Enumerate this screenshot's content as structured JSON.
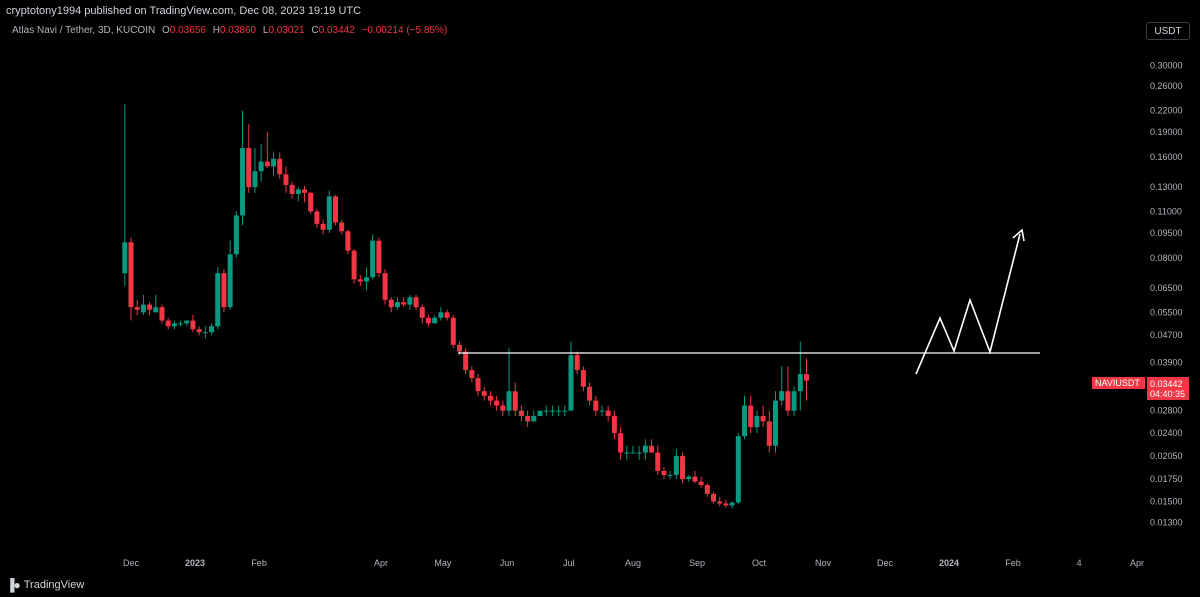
{
  "header": {
    "publish_line": "cryptotony1994 published on TradingView.com, Dec 08, 2023 19:19 UTC",
    "symbol": "Atlas Navi / Tether, 3D, KUCOIN",
    "ohlc": {
      "o_label": "O",
      "o": "0.03656",
      "h_label": "H",
      "h": "0.03860",
      "l_label": "L",
      "l": "0.03021",
      "c_label": "C",
      "c": "0.03442",
      "change": "−0.00214 (−5.85%)"
    },
    "currency_button": "USDT"
  },
  "price_tag": {
    "ticker": "NAVIUSDT",
    "price": "0.03442",
    "countdown": "04:40:35"
  },
  "footer": {
    "brand": "TradingView",
    "logo_icon": "tradingview-logo-icon"
  },
  "colors": {
    "up": "#089981",
    "down": "#f23645",
    "background": "#000000",
    "axis_text": "#b2b5be",
    "line": "#ffffff"
  },
  "chart_data": {
    "type": "candlestick",
    "y_scale": "log",
    "ylim": [
      0.012,
      0.32
    ],
    "y_ticks": [
      "0.30000",
      "0.26000",
      "0.22000",
      "0.19000",
      "0.16000",
      "0.13000",
      "0.11000",
      "0.09500",
      "0.08000",
      "0.06500",
      "0.05500",
      "0.04700",
      "0.03900",
      "0.02800",
      "0.02400",
      "0.02050",
      "0.01750",
      "0.01500",
      "0.01300"
    ],
    "x_ticks": [
      "Dec",
      "2023",
      "Feb",
      "Apr",
      "May",
      "Jun",
      "Jul",
      "Aug",
      "Sep",
      "Oct",
      "Nov",
      "Dec",
      "2024",
      "Feb",
      "4",
      "Apr"
    ],
    "x_tick_dates": [
      "2022-12-01",
      "2023-01-01",
      "2023-02-01",
      "2023-04-01",
      "2023-05-01",
      "2023-06-01",
      "2023-07-01",
      "2023-08-01",
      "2023-09-01",
      "2023-10-01",
      "2023-11-01",
      "2023-12-01",
      "2024-01-01",
      "2024-02-01",
      "2024-03-04",
      "2024-04-01"
    ],
    "grid": false,
    "candles": [
      {
        "date": "2022-11-28",
        "o": 0.072,
        "h": 0.23,
        "l": 0.066,
        "c": 0.089
      },
      {
        "date": "2022-12-01",
        "o": 0.089,
        "h": 0.092,
        "l": 0.052,
        "c": 0.057
      },
      {
        "date": "2022-12-04",
        "o": 0.057,
        "h": 0.06,
        "l": 0.054,
        "c": 0.056
      },
      {
        "date": "2022-12-07",
        "o": 0.055,
        "h": 0.062,
        "l": 0.054,
        "c": 0.058
      },
      {
        "date": "2022-12-10",
        "o": 0.058,
        "h": 0.059,
        "l": 0.054,
        "c": 0.056
      },
      {
        "date": "2022-12-13",
        "o": 0.055,
        "h": 0.062,
        "l": 0.055,
        "c": 0.057
      },
      {
        "date": "2022-12-16",
        "o": 0.057,
        "h": 0.058,
        "l": 0.051,
        "c": 0.052
      },
      {
        "date": "2022-12-19",
        "o": 0.052,
        "h": 0.053,
        "l": 0.049,
        "c": 0.05
      },
      {
        "date": "2022-12-22",
        "o": 0.05,
        "h": 0.052,
        "l": 0.049,
        "c": 0.051
      },
      {
        "date": "2022-12-25",
        "o": 0.051,
        "h": 0.052,
        "l": 0.05,
        "c": 0.051
      },
      {
        "date": "2022-12-28",
        "o": 0.051,
        "h": 0.052,
        "l": 0.05,
        "c": 0.052
      },
      {
        "date": "2022-12-31",
        "o": 0.052,
        "h": 0.054,
        "l": 0.048,
        "c": 0.049
      },
      {
        "date": "2023-01-03",
        "o": 0.049,
        "h": 0.05,
        "l": 0.047,
        "c": 0.048
      },
      {
        "date": "2023-01-06",
        "o": 0.048,
        "h": 0.05,
        "l": 0.046,
        "c": 0.048
      },
      {
        "date": "2023-01-09",
        "o": 0.048,
        "h": 0.051,
        "l": 0.047,
        "c": 0.05
      },
      {
        "date": "2023-01-12",
        "o": 0.05,
        "h": 0.075,
        "l": 0.049,
        "c": 0.072
      },
      {
        "date": "2023-01-15",
        "o": 0.072,
        "h": 0.074,
        "l": 0.055,
        "c": 0.057
      },
      {
        "date": "2023-01-18",
        "o": 0.057,
        "h": 0.09,
        "l": 0.056,
        "c": 0.082
      },
      {
        "date": "2023-01-21",
        "o": 0.082,
        "h": 0.11,
        "l": 0.08,
        "c": 0.107
      },
      {
        "date": "2023-01-24",
        "o": 0.107,
        "h": 0.22,
        "l": 0.1,
        "c": 0.17
      },
      {
        "date": "2023-01-27",
        "o": 0.17,
        "h": 0.2,
        "l": 0.125,
        "c": 0.13
      },
      {
        "date": "2023-01-30",
        "o": 0.13,
        "h": 0.17,
        "l": 0.125,
        "c": 0.145
      },
      {
        "date": "2023-02-02",
        "o": 0.145,
        "h": 0.175,
        "l": 0.135,
        "c": 0.155
      },
      {
        "date": "2023-02-05",
        "o": 0.155,
        "h": 0.19,
        "l": 0.148,
        "c": 0.15
      },
      {
        "date": "2023-02-08",
        "o": 0.15,
        "h": 0.166,
        "l": 0.14,
        "c": 0.158
      },
      {
        "date": "2023-02-11",
        "o": 0.158,
        "h": 0.165,
        "l": 0.138,
        "c": 0.142
      },
      {
        "date": "2023-02-14",
        "o": 0.142,
        "h": 0.15,
        "l": 0.125,
        "c": 0.132
      },
      {
        "date": "2023-02-17",
        "o": 0.132,
        "h": 0.135,
        "l": 0.12,
        "c": 0.124
      },
      {
        "date": "2023-02-20",
        "o": 0.124,
        "h": 0.13,
        "l": 0.118,
        "c": 0.128
      },
      {
        "date": "2023-02-23",
        "o": 0.128,
        "h": 0.131,
        "l": 0.117,
        "c": 0.125
      },
      {
        "date": "2023-02-26",
        "o": 0.125,
        "h": 0.126,
        "l": 0.108,
        "c": 0.11
      },
      {
        "date": "2023-03-01",
        "o": 0.11,
        "h": 0.112,
        "l": 0.098,
        "c": 0.101
      },
      {
        "date": "2023-03-04",
        "o": 0.101,
        "h": 0.104,
        "l": 0.094,
        "c": 0.097
      },
      {
        "date": "2023-03-07",
        "o": 0.097,
        "h": 0.127,
        "l": 0.095,
        "c": 0.122
      },
      {
        "date": "2023-03-10",
        "o": 0.122,
        "h": 0.123,
        "l": 0.1,
        "c": 0.102
      },
      {
        "date": "2023-03-13",
        "o": 0.102,
        "h": 0.104,
        "l": 0.094,
        "c": 0.096
      },
      {
        "date": "2023-03-16",
        "o": 0.096,
        "h": 0.097,
        "l": 0.082,
        "c": 0.084
      },
      {
        "date": "2023-03-19",
        "o": 0.084,
        "h": 0.085,
        "l": 0.067,
        "c": 0.069
      },
      {
        "date": "2023-03-22",
        "o": 0.069,
        "h": 0.071,
        "l": 0.066,
        "c": 0.068
      },
      {
        "date": "2023-03-25",
        "o": 0.068,
        "h": 0.075,
        "l": 0.064,
        "c": 0.07
      },
      {
        "date": "2023-03-28",
        "o": 0.07,
        "h": 0.094,
        "l": 0.069,
        "c": 0.09
      },
      {
        "date": "2023-03-31",
        "o": 0.09,
        "h": 0.092,
        "l": 0.07,
        "c": 0.072
      },
      {
        "date": "2023-04-03",
        "o": 0.072,
        "h": 0.074,
        "l": 0.058,
        "c": 0.06
      },
      {
        "date": "2023-04-06",
        "o": 0.06,
        "h": 0.061,
        "l": 0.055,
        "c": 0.057
      },
      {
        "date": "2023-04-09",
        "o": 0.057,
        "h": 0.061,
        "l": 0.056,
        "c": 0.059
      },
      {
        "date": "2023-04-12",
        "o": 0.059,
        "h": 0.061,
        "l": 0.057,
        "c": 0.058
      },
      {
        "date": "2023-04-15",
        "o": 0.058,
        "h": 0.062,
        "l": 0.056,
        "c": 0.061
      },
      {
        "date": "2023-04-18",
        "o": 0.061,
        "h": 0.062,
        "l": 0.056,
        "c": 0.057
      },
      {
        "date": "2023-04-21",
        "o": 0.057,
        "h": 0.058,
        "l": 0.051,
        "c": 0.053
      },
      {
        "date": "2023-04-24",
        "o": 0.053,
        "h": 0.054,
        "l": 0.05,
        "c": 0.051
      },
      {
        "date": "2023-04-27",
        "o": 0.051,
        "h": 0.054,
        "l": 0.051,
        "c": 0.053
      },
      {
        "date": "2023-04-30",
        "o": 0.053,
        "h": 0.057,
        "l": 0.052,
        "c": 0.055
      },
      {
        "date": "2023-05-03",
        "o": 0.055,
        "h": 0.056,
        "l": 0.052,
        "c": 0.053
      },
      {
        "date": "2023-05-06",
        "o": 0.053,
        "h": 0.054,
        "l": 0.043,
        "c": 0.044
      },
      {
        "date": "2023-05-09",
        "o": 0.044,
        "h": 0.045,
        "l": 0.041,
        "c": 0.042
      },
      {
        "date": "2023-05-12",
        "o": 0.042,
        "h": 0.043,
        "l": 0.036,
        "c": 0.037
      },
      {
        "date": "2023-05-15",
        "o": 0.037,
        "h": 0.038,
        "l": 0.034,
        "c": 0.035
      },
      {
        "date": "2023-05-18",
        "o": 0.035,
        "h": 0.036,
        "l": 0.031,
        "c": 0.032
      },
      {
        "date": "2023-05-21",
        "o": 0.032,
        "h": 0.033,
        "l": 0.03,
        "c": 0.031
      },
      {
        "date": "2023-05-24",
        "o": 0.031,
        "h": 0.032,
        "l": 0.029,
        "c": 0.03
      },
      {
        "date": "2023-05-27",
        "o": 0.03,
        "h": 0.031,
        "l": 0.028,
        "c": 0.029
      },
      {
        "date": "2023-05-30",
        "o": 0.029,
        "h": 0.03,
        "l": 0.027,
        "c": 0.028
      },
      {
        "date": "2023-06-02",
        "o": 0.028,
        "h": 0.043,
        "l": 0.027,
        "c": 0.032
      },
      {
        "date": "2023-06-05",
        "o": 0.032,
        "h": 0.034,
        "l": 0.027,
        "c": 0.028
      },
      {
        "date": "2023-06-08",
        "o": 0.028,
        "h": 0.029,
        "l": 0.026,
        "c": 0.027
      },
      {
        "date": "2023-06-11",
        "o": 0.027,
        "h": 0.028,
        "l": 0.025,
        "c": 0.026
      },
      {
        "date": "2023-06-14",
        "o": 0.026,
        "h": 0.028,
        "l": 0.026,
        "c": 0.027
      },
      {
        "date": "2023-06-17",
        "o": 0.027,
        "h": 0.028,
        "l": 0.027,
        "c": 0.028
      },
      {
        "date": "2023-06-20",
        "o": 0.028,
        "h": 0.029,
        "l": 0.027,
        "c": 0.028
      },
      {
        "date": "2023-06-23",
        "o": 0.028,
        "h": 0.029,
        "l": 0.027,
        "c": 0.028
      },
      {
        "date": "2023-06-26",
        "o": 0.028,
        "h": 0.029,
        "l": 0.027,
        "c": 0.028
      },
      {
        "date": "2023-06-29",
        "o": 0.028,
        "h": 0.029,
        "l": 0.027,
        "c": 0.028
      },
      {
        "date": "2023-07-02",
        "o": 0.028,
        "h": 0.045,
        "l": 0.028,
        "c": 0.041
      },
      {
        "date": "2023-07-05",
        "o": 0.041,
        "h": 0.042,
        "l": 0.036,
        "c": 0.037
      },
      {
        "date": "2023-07-08",
        "o": 0.037,
        "h": 0.038,
        "l": 0.032,
        "c": 0.033
      },
      {
        "date": "2023-07-11",
        "o": 0.033,
        "h": 0.034,
        "l": 0.029,
        "c": 0.03
      },
      {
        "date": "2023-07-14",
        "o": 0.03,
        "h": 0.031,
        "l": 0.027,
        "c": 0.028
      },
      {
        "date": "2023-07-17",
        "o": 0.028,
        "h": 0.029,
        "l": 0.027,
        "c": 0.028
      },
      {
        "date": "2023-07-20",
        "o": 0.028,
        "h": 0.029,
        "l": 0.026,
        "c": 0.027
      },
      {
        "date": "2023-07-23",
        "o": 0.027,
        "h": 0.028,
        "l": 0.023,
        "c": 0.024
      },
      {
        "date": "2023-07-26",
        "o": 0.024,
        "h": 0.025,
        "l": 0.02,
        "c": 0.021
      },
      {
        "date": "2023-07-29",
        "o": 0.021,
        "h": 0.022,
        "l": 0.02,
        "c": 0.021
      },
      {
        "date": "2023-08-01",
        "o": 0.021,
        "h": 0.022,
        "l": 0.021,
        "c": 0.021
      },
      {
        "date": "2023-08-04",
        "o": 0.021,
        "h": 0.022,
        "l": 0.02,
        "c": 0.021
      },
      {
        "date": "2023-08-07",
        "o": 0.021,
        "h": 0.023,
        "l": 0.02,
        "c": 0.022
      },
      {
        "date": "2023-08-10",
        "o": 0.022,
        "h": 0.023,
        "l": 0.021,
        "c": 0.021
      },
      {
        "date": "2023-08-13",
        "o": 0.021,
        "h": 0.022,
        "l": 0.018,
        "c": 0.0185
      },
      {
        "date": "2023-08-16",
        "o": 0.0185,
        "h": 0.019,
        "l": 0.0175,
        "c": 0.018
      },
      {
        "date": "2023-08-19",
        "o": 0.018,
        "h": 0.0185,
        "l": 0.0175,
        "c": 0.018
      },
      {
        "date": "2023-08-22",
        "o": 0.018,
        "h": 0.0215,
        "l": 0.0175,
        "c": 0.0205
      },
      {
        "date": "2023-08-25",
        "o": 0.0205,
        "h": 0.021,
        "l": 0.017,
        "c": 0.0175
      },
      {
        "date": "2023-08-28",
        "o": 0.0175,
        "h": 0.018,
        "l": 0.0172,
        "c": 0.0178
      },
      {
        "date": "2023-08-31",
        "o": 0.0178,
        "h": 0.0185,
        "l": 0.017,
        "c": 0.0172
      },
      {
        "date": "2023-09-03",
        "o": 0.0172,
        "h": 0.0178,
        "l": 0.0165,
        "c": 0.0168
      },
      {
        "date": "2023-09-06",
        "o": 0.0168,
        "h": 0.017,
        "l": 0.0155,
        "c": 0.0158
      },
      {
        "date": "2023-09-09",
        "o": 0.0158,
        "h": 0.016,
        "l": 0.0148,
        "c": 0.015
      },
      {
        "date": "2023-09-12",
        "o": 0.015,
        "h": 0.0155,
        "l": 0.0145,
        "c": 0.0148
      },
      {
        "date": "2023-09-15",
        "o": 0.0148,
        "h": 0.0152,
        "l": 0.0144,
        "c": 0.0146
      },
      {
        "date": "2023-09-18",
        "o": 0.0146,
        "h": 0.015,
        "l": 0.0143,
        "c": 0.0149
      },
      {
        "date": "2023-09-21",
        "o": 0.0149,
        "h": 0.024,
        "l": 0.0147,
        "c": 0.0235
      },
      {
        "date": "2023-09-24",
        "o": 0.0235,
        "h": 0.031,
        "l": 0.023,
        "c": 0.029
      },
      {
        "date": "2023-09-27",
        "o": 0.029,
        "h": 0.031,
        "l": 0.024,
        "c": 0.025
      },
      {
        "date": "2023-09-30",
        "o": 0.025,
        "h": 0.028,
        "l": 0.024,
        "c": 0.027
      },
      {
        "date": "2023-10-03",
        "o": 0.027,
        "h": 0.029,
        "l": 0.025,
        "c": 0.026
      },
      {
        "date": "2023-10-06",
        "o": 0.026,
        "h": 0.028,
        "l": 0.021,
        "c": 0.022
      },
      {
        "date": "2023-10-09",
        "o": 0.022,
        "h": 0.032,
        "l": 0.021,
        "c": 0.03
      },
      {
        "date": "2023-10-12",
        "o": 0.03,
        "h": 0.038,
        "l": 0.029,
        "c": 0.032
      },
      {
        "date": "2023-10-15",
        "o": 0.032,
        "h": 0.038,
        "l": 0.027,
        "c": 0.028
      },
      {
        "date": "2023-10-18",
        "o": 0.028,
        "h": 0.033,
        "l": 0.027,
        "c": 0.032
      },
      {
        "date": "2023-10-21",
        "o": 0.032,
        "h": 0.045,
        "l": 0.028,
        "c": 0.036
      },
      {
        "date": "2023-10-24",
        "o": 0.036,
        "h": 0.04,
        "l": 0.03,
        "c": 0.0344
      }
    ]
  }
}
